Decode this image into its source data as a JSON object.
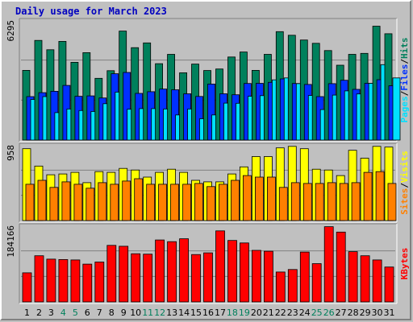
{
  "title": "Daily usage for March 2023",
  "chart_data": [
    {
      "type": "bar",
      "title": "Daily usage for March 2023",
      "categories": [
        "1",
        "2",
        "3",
        "4",
        "5",
        "6",
        "7",
        "8",
        "9",
        "10",
        "11",
        "12",
        "13",
        "14",
        "15",
        "16",
        "17",
        "18",
        "19",
        "20",
        "21",
        "22",
        "23",
        "24",
        "25",
        "26",
        "27",
        "28",
        "29",
        "30",
        "31"
      ],
      "weekend_days": [
        "4",
        "5",
        "11",
        "12",
        "18",
        "19",
        "25",
        "26"
      ],
      "ymax_label": "6295",
      "ylim": [
        0,
        6295
      ],
      "series": [
        {
          "name": "Hits",
          "color": "#00805c",
          "values": [
            3660,
            5230,
            4740,
            5180,
            4080,
            4590,
            3240,
            3640,
            5720,
            4850,
            5100,
            4010,
            4500,
            3530,
            3990,
            3650,
            3730,
            4360,
            4620,
            3660,
            4500,
            5690,
            5500,
            5250,
            5080,
            4700,
            3930,
            4500,
            4550,
            5980,
            5580
          ]
        },
        {
          "name": "Files",
          "color": "#0030ff",
          "values": [
            2280,
            2490,
            2560,
            2870,
            2300,
            2320,
            2210,
            3480,
            3550,
            2450,
            2540,
            2680,
            2640,
            2430,
            2290,
            2940,
            2430,
            2380,
            2970,
            2980,
            3030,
            3210,
            2970,
            2920,
            2280,
            2960,
            3140,
            2660,
            2980,
            3170,
            2850
          ]
        },
        {
          "name": "Pages",
          "color": "#00e0ff",
          "values": [
            2130,
            2280,
            1440,
            1630,
            1550,
            1500,
            1910,
            2520,
            1620,
            1650,
            1650,
            1630,
            1320,
            1630,
            1120,
            1320,
            1940,
            1930,
            2300,
            2330,
            3160,
            3260,
            2960,
            2340,
            1600,
            2360,
            2580,
            2420,
            2980,
            3960,
            3260
          ]
        }
      ]
    },
    {
      "type": "bar",
      "ymax_label": "958",
      "ylim": [
        0,
        958
      ],
      "series": [
        {
          "name": "Visits",
          "color": "#ffff00",
          "values": [
            910,
            690,
            580,
            590,
            610,
            480,
            620,
            610,
            660,
            640,
            550,
            610,
            650,
            610,
            510,
            490,
            490,
            590,
            680,
            810,
            810,
            920,
            940,
            910,
            650,
            640,
            570,
            890,
            790,
            940,
            930
          ]
        },
        {
          "name": "Sites",
          "color": "#ff8000",
          "values": [
            460,
            510,
            420,
            490,
            460,
            410,
            480,
            460,
            500,
            530,
            460,
            460,
            460,
            460,
            470,
            430,
            460,
            510,
            570,
            550,
            550,
            420,
            480,
            470,
            470,
            480,
            470,
            480,
            610,
            620,
            470
          ]
        }
      ]
    },
    {
      "type": "bar",
      "ymax_label": "184166",
      "ylim": [
        0,
        184166
      ],
      "series": [
        {
          "name": "KBytes",
          "color": "#ff0000",
          "values": [
            70000,
            111000,
            103000,
            102000,
            101000,
            91000,
            96000,
            136000,
            134000,
            116000,
            115000,
            149000,
            145000,
            152000,
            114000,
            118000,
            171000,
            148000,
            142000,
            124000,
            122000,
            72000,
            78000,
            120000,
            92000,
            181000,
            168000,
            121000,
            111000,
            101000,
            84000
          ]
        }
      ]
    }
  ],
  "axis_labels": {
    "top": [
      "Pages",
      "Files",
      "Hits"
    ],
    "middle": [
      "Sites",
      "Visits"
    ],
    "bottom": [
      "KBytes"
    ]
  },
  "colors": {
    "weekday_label": "#000000",
    "weekend_label": "#00805c",
    "slash": "#000000",
    "grid": "#808080",
    "panel_bg": "#c0c0c0"
  }
}
